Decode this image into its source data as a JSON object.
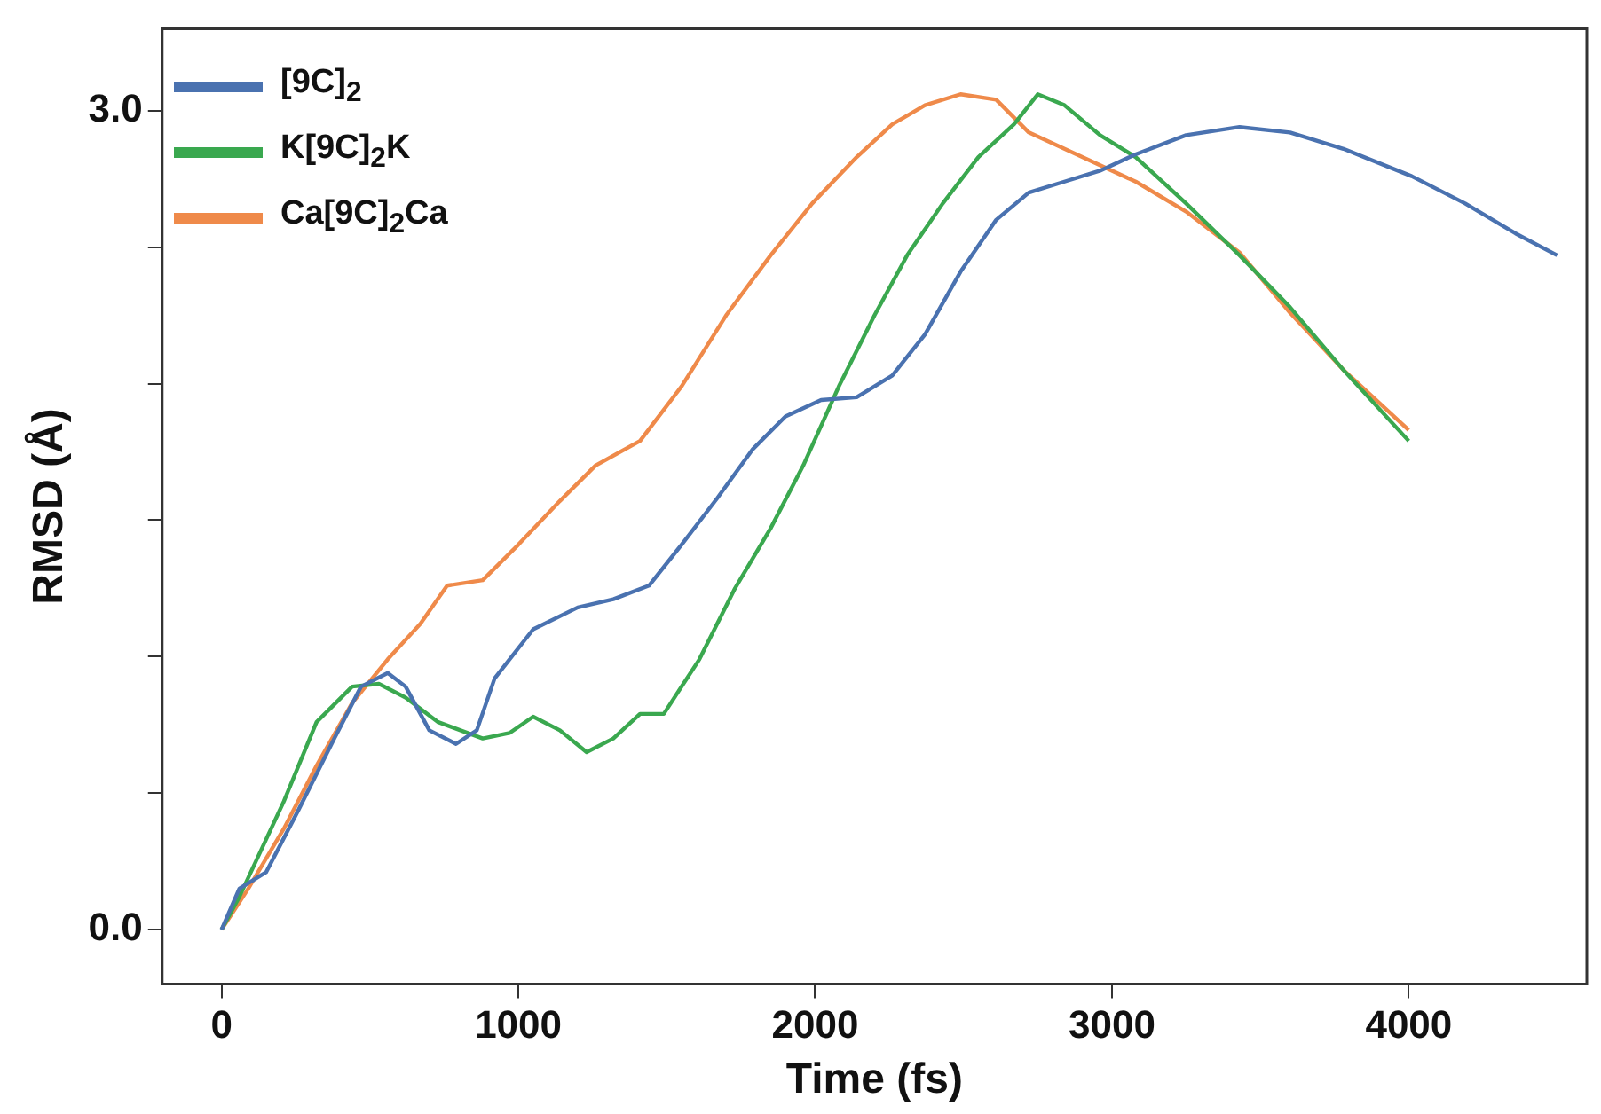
{
  "chart_data": {
    "type": "line",
    "xlabel": "Time (fs)",
    "ylabel": "RMSD (Å)",
    "xlim": [
      -200,
      4600
    ],
    "xticks": [
      0,
      1000,
      2000,
      3000,
      4000
    ],
    "ylim": [
      -0.2,
      3.3
    ],
    "yticks": [
      {
        "value": 0,
        "label": "0.0"
      },
      {
        "value": 0.5,
        "label": null
      },
      {
        "value": 1,
        "label": null
      },
      {
        "value": 1.5,
        "label": null
      },
      {
        "value": 2,
        "label": null
      },
      {
        "value": 2.5,
        "label": null
      },
      {
        "value": 3,
        "label": "3.0"
      }
    ],
    "grid": false,
    "legend": "top left",
    "marker": "none",
    "line_style": "solid",
    "series": [
      {
        "name": "[9C]$_{2}$",
        "color": "#4a72b0",
        "x": [
          0,
          60,
          150,
          260,
          380,
          470,
          560,
          620,
          700,
          790,
          860,
          920,
          1050,
          1200,
          1320,
          1440,
          1550,
          1670,
          1790,
          1900,
          2020,
          2140,
          2260,
          2370,
          2490,
          2610,
          2720,
          2840,
          2960,
          3080,
          3250,
          3430,
          3600,
          3780,
          4010,
          4190,
          4360,
          4500
        ],
        "values": [
          0,
          0.15,
          0.21,
          0.44,
          0.7,
          0.89,
          0.94,
          0.89,
          0.73,
          0.68,
          0.73,
          0.92,
          1.1,
          1.18,
          1.21,
          1.26,
          1.41,
          1.58,
          1.76,
          1.88,
          1.94,
          1.95,
          2.03,
          2.18,
          2.41,
          2.6,
          2.7,
          2.74,
          2.78,
          2.84,
          2.91,
          2.94,
          2.92,
          2.86,
          2.76,
          2.66,
          2.55,
          2.47
        ]
      },
      {
        "name": "K[9C]$_{2}$K",
        "color": "#3aa84f",
        "x": [
          0,
          60,
          210,
          320,
          440,
          530,
          620,
          730,
          880,
          970,
          1050,
          1140,
          1230,
          1320,
          1410,
          1490,
          1610,
          1730,
          1850,
          1960,
          2080,
          2200,
          2310,
          2430,
          2550,
          2670,
          2750,
          2840,
          2960,
          3080,
          3250,
          3430,
          3600,
          3780,
          4000
        ],
        "values": [
          0,
          0.12,
          0.47,
          0.76,
          0.89,
          0.9,
          0.85,
          0.76,
          0.7,
          0.72,
          0.78,
          0.73,
          0.65,
          0.7,
          0.79,
          0.79,
          0.99,
          1.25,
          1.47,
          1.7,
          1.99,
          2.25,
          2.47,
          2.66,
          2.83,
          2.95,
          3.06,
          3.02,
          2.91,
          2.83,
          2.66,
          2.47,
          2.28,
          2.05,
          1.79
        ]
      },
      {
        "name": "Ca[9C]$_{2}$Ca",
        "color": "#ef8a4a",
        "x": [
          0,
          90,
          210,
          320,
          440,
          560,
          670,
          760,
          880,
          1000,
          1140,
          1260,
          1410,
          1550,
          1700,
          1850,
          1990,
          2140,
          2260,
          2370,
          2490,
          2610,
          2720,
          2900,
          3080,
          3250,
          3430,
          3600,
          3780,
          4000
        ],
        "values": [
          0,
          0.15,
          0.37,
          0.6,
          0.83,
          0.99,
          1.12,
          1.26,
          1.28,
          1.41,
          1.57,
          1.7,
          1.79,
          1.99,
          2.25,
          2.47,
          2.66,
          2.83,
          2.95,
          3.02,
          3.06,
          3.04,
          2.92,
          2.83,
          2.74,
          2.63,
          2.48,
          2.26,
          2.05,
          1.83
        ]
      }
    ]
  }
}
